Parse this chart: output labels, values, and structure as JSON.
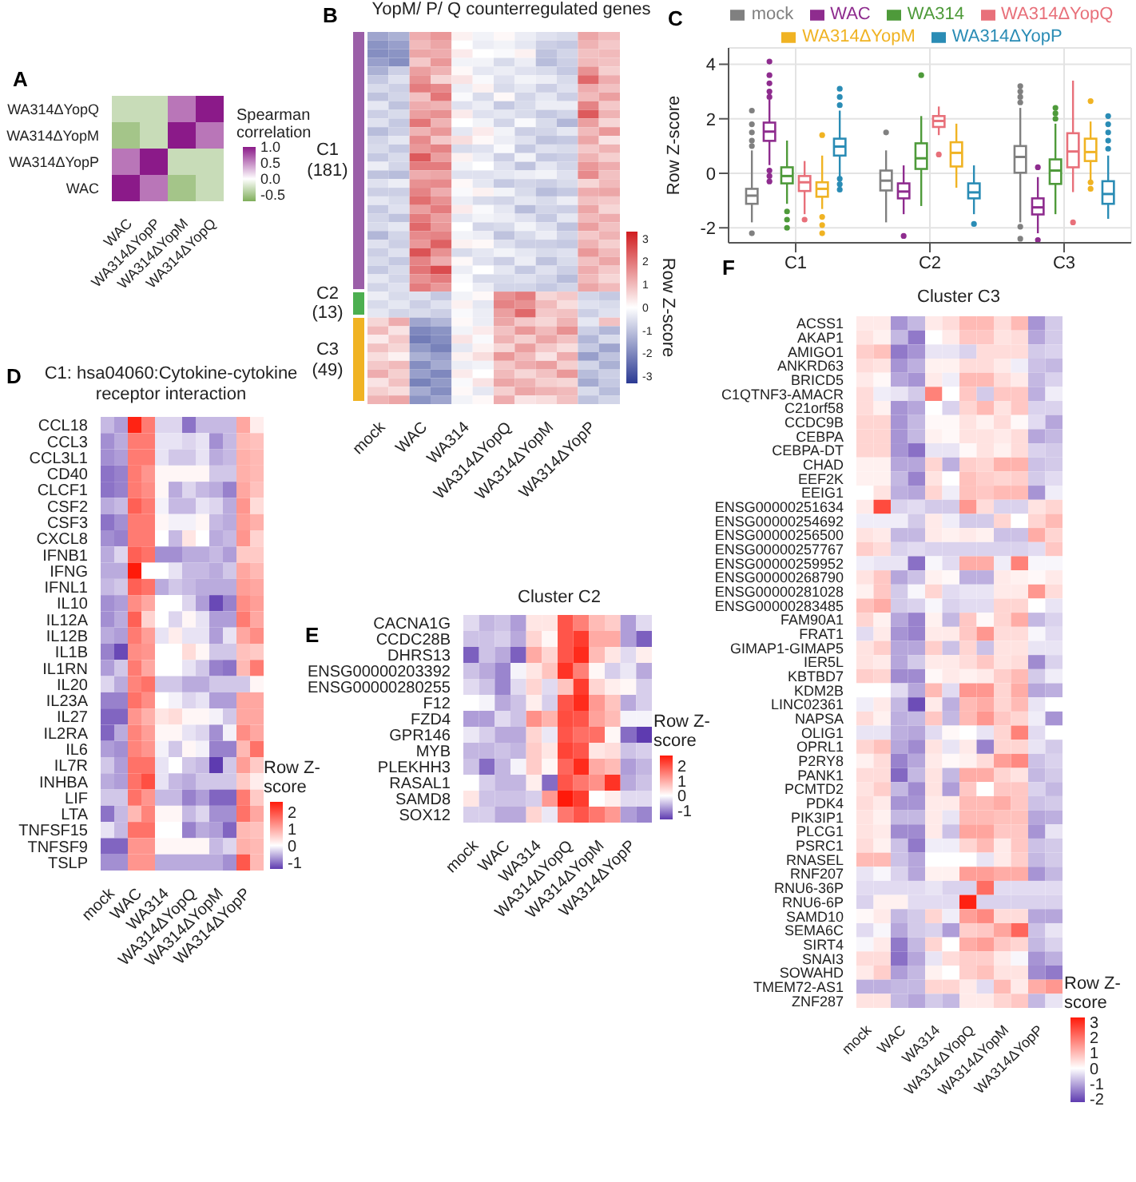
{
  "chart_data": [
    {
      "type": "heatmap",
      "annotations": [
        "A"
      ],
      "categories": [
        "WAC",
        "WA314ΔYopP",
        "WA314ΔYopM",
        "WA314ΔYopQ"
      ],
      "y_categories": [
        "WA314ΔYopQ",
        "WA314ΔYopM",
        "WA314ΔYopP",
        "WAC"
      ],
      "cells": [
        [
          -0.3,
          -0.3,
          0.6,
          1
        ],
        [
          -0.5,
          -0.3,
          1,
          0.6
        ],
        [
          0.6,
          1,
          -0.3,
          -0.3
        ],
        [
          1,
          0.6,
          -0.5,
          -0.3
        ]
      ],
      "clabel": "Spearman correlation",
      "clim": [
        -0.7,
        1
      ],
      "cticks": [
        {
          "value": 1,
          "label": "1.0"
        },
        0.5,
        {
          "value": 0,
          "label": "0.0"
        },
        -0.5
      ]
    },
    {
      "type": "heatmap",
      "title": "YopM/ P/ Q counterregulated genes",
      "annotations": [
        "B",
        "C1 (181)",
        "C2 (13)",
        "C3 (49)"
      ],
      "tick_labels": "x",
      "categories": [
        "mock",
        null,
        "WAC",
        null,
        "WA314",
        null,
        "WA314ΔYopQ",
        null,
        "WA314ΔYopM",
        null,
        "WA314ΔYopP",
        null
      ],
      "cells": [
        [
          -1.5,
          -1.3,
          1.2,
          1.5,
          0.2,
          -0.2,
          0.1,
          -0.3,
          -0.5,
          -0.6,
          1.3,
          1
        ],
        [
          -1.8,
          -1.6,
          1,
          1.3,
          0,
          -0.3,
          -0.2,
          -0.4,
          -0.8,
          -0.9,
          1.1,
          0.8
        ],
        [
          -1.9,
          -1.8,
          1.3,
          1.2,
          0.3,
          0,
          -0.1,
          0.2,
          -1,
          -0.7,
          0.9,
          1
        ],
        [
          -1.6,
          -1.9,
          0.8,
          1.5,
          -0.2,
          -0.2,
          -0.6,
          -0.3,
          -1.1,
          -0.8,
          1,
          0.9
        ],
        [
          -1.3,
          -0.8,
          1.4,
          1.1,
          0.1,
          -0.4,
          -0.3,
          -0.5,
          -0.6,
          -0.9,
          1.6,
          0.7
        ],
        [
          -0.9,
          -0.5,
          1.6,
          0.6,
          0.4,
          -0.1,
          -0.5,
          -0.2,
          -0.3,
          -0.6,
          2.2,
          1.2
        ],
        [
          -0.6,
          -0.8,
          1.9,
          1.7,
          -0.3,
          0.2,
          -0.6,
          -0.4,
          -0.8,
          -0.5,
          1.2,
          0.9
        ],
        [
          -1,
          -0.7,
          0.9,
          2,
          -0.1,
          -0.6,
          0.1,
          -0.7,
          -0.4,
          -0.8,
          1,
          1.4
        ],
        [
          -0.4,
          -1,
          1.2,
          1.1,
          -0.5,
          -0.3,
          -0.9,
          -0.6,
          -0.3,
          -0.3,
          1.8,
          0.8
        ],
        [
          -0.8,
          -0.6,
          1.4,
          1.6,
          0.3,
          -0.5,
          -0.4,
          -0.6,
          -0.9,
          -0.7,
          2.4,
          1.1
        ],
        [
          -0.5,
          -0.9,
          2,
          1.1,
          0,
          -0.2,
          -0.7,
          -0.1,
          -0.6,
          -1.2,
          1.4,
          0.6
        ],
        [
          -1.1,
          -0.8,
          1.1,
          1.5,
          -0.4,
          0.3,
          -0.2,
          -0.8,
          -0.7,
          -0.4,
          1,
          1.5
        ],
        [
          -0.7,
          -0.4,
          1.7,
          0.8,
          0.5,
          0.1,
          -0.3,
          -0.5,
          -1,
          -0.9,
          1.3,
          0.4
        ],
        [
          -0.6,
          -0.9,
          1.5,
          1.8,
          -0.6,
          -0.5,
          -0.1,
          -0.9,
          -0.5,
          -0.6,
          0.8,
          1.1
        ],
        [
          -0.9,
          -0.6,
          2.4,
          1.4,
          0.2,
          -0.3,
          -0.8,
          -0.2,
          -0.9,
          -0.8,
          1.1,
          0.7
        ],
        [
          -0.3,
          -0.7,
          1.9,
          1.9,
          -0.2,
          0,
          -0.5,
          -1,
          -0.4,
          -0.7,
          1.5,
          1.2
        ],
        [
          -1,
          -1.1,
          1.2,
          1.3,
          -0.5,
          -0.5,
          -0.4,
          -0.3,
          -0.2,
          -0.5,
          1.7,
          0.9
        ],
        [
          -0.5,
          -0.3,
          1.6,
          1.7,
          0.1,
          -0.4,
          -0.9,
          -0.7,
          -0.8,
          -0.6,
          0.6,
          1
        ],
        [
          -0.8,
          -0.8,
          1.8,
          1.2,
          -0.1,
          0.2,
          -0.2,
          -0.6,
          -1.1,
          -0.9,
          1.2,
          1.3
        ],
        [
          -0.4,
          -0.6,
          2.1,
          1.6,
          -0.3,
          -0.6,
          -0.7,
          -0.4,
          -0.6,
          -0.3,
          0.9,
          0.8
        ],
        [
          -0.9,
          -0.5,
          1.4,
          1.9,
          0.3,
          -0.1,
          -0.4,
          -1.1,
          -0.7,
          -0.8,
          1.3,
          0.6
        ],
        [
          -0.7,
          -1,
          1.9,
          1.4,
          -0.4,
          -0.2,
          -0.3,
          -0.5,
          -0.9,
          -0.4,
          1,
          1.2
        ],
        [
          -0.6,
          -0.4,
          2.2,
          1.5,
          0,
          -0.7,
          -0.6,
          -0.2,
          -0.5,
          -1,
          1.4,
          0.9
        ],
        [
          -1.2,
          -0.7,
          1.7,
          1.8,
          -0.2,
          -0.3,
          -1,
          -0.6,
          -0.3,
          -0.7,
          0.8,
          1.1
        ],
        [
          -0.5,
          -0.8,
          1.5,
          2.3,
          0.2,
          0.1,
          -0.5,
          -0.8,
          -0.8,
          -0.9,
          1.1,
          0.7
        ],
        [
          -0.8,
          -0.5,
          2.5,
          1.6,
          -0.6,
          -0.4,
          -0.2,
          -0.4,
          -0.6,
          -0.5,
          1.5,
          1
        ],
        [
          -0.6,
          -0.9,
          1.8,
          1.2,
          0.1,
          -0.5,
          -0.8,
          -0.3,
          -1,
          -0.6,
          0.9,
          1.3
        ],
        [
          -0.9,
          -0.6,
          2,
          2.6,
          -0.3,
          0,
          -0.4,
          -0.9,
          -0.5,
          -0.8,
          1.2,
          0.8
        ],
        [
          -0.4,
          -0.7,
          1.6,
          1.9,
          -0.1,
          -0.6,
          -0.6,
          -0.5,
          -0.7,
          -1.1,
          1,
          0.6
        ],
        [
          -0.7,
          -0.5,
          1.9,
          1.5,
          0,
          -0.3,
          -0.7,
          -0.7,
          -0.9,
          -0.7,
          1.3,
          1
        ],
        [
          -0.3,
          -0.6,
          -0.5,
          -0.9,
          -0.2,
          0.1,
          1.6,
          1.9,
          0.6,
          0.8,
          -0.7,
          -0.9
        ],
        [
          -0.6,
          -0.4,
          -0.8,
          -0.5,
          0.2,
          -0.4,
          1.8,
          1.6,
          1,
          0.5,
          -0.5,
          -0.6
        ],
        [
          -0.4,
          -0.7,
          -0.6,
          -0.8,
          -0.1,
          -0.3,
          1.4,
          2.2,
          0.8,
          0.9,
          -0.8,
          -0.5
        ],
        [
          0.6,
          1.2,
          -1.5,
          -1.2,
          0.1,
          -0.3,
          1.3,
          0.8,
          0.6,
          1.1,
          -0.4,
          0.9
        ],
        [
          1,
          0.4,
          -2,
          -1.8,
          -0.2,
          0.3,
          0.9,
          1.5,
          1,
          1.6,
          -0.8,
          -1.2
        ],
        [
          0.3,
          0.8,
          -2.2,
          -1.9,
          0.4,
          -0.1,
          1.1,
          0.7,
          1.3,
          0.9,
          -1.2,
          -0.6
        ],
        [
          0.9,
          0.6,
          -1.7,
          -2.1,
          -0.4,
          0.2,
          0.6,
          1.4,
          0.8,
          0.5,
          -0.9,
          -1.5
        ],
        [
          0.5,
          0.2,
          -1.3,
          -1.6,
          0.2,
          0.5,
          1.5,
          1,
          0.4,
          1.2,
          -1.6,
          -1
        ],
        [
          0.8,
          1,
          -1.9,
          -1.4,
          -0.3,
          -0.2,
          0.8,
          1.2,
          1.4,
          0.7,
          -0.7,
          -1.3
        ],
        [
          1.2,
          0.7,
          -1.6,
          -2,
          0.3,
          0,
          1,
          0.6,
          0.9,
          1.5,
          -1.1,
          -0.8
        ],
        [
          0.4,
          0.9,
          -2.1,
          -1.7,
          -0.1,
          0.4,
          1.3,
          1.1,
          0.7,
          0.6,
          -1.4,
          -0.9
        ],
        [
          0.7,
          0.5,
          -1.4,
          -1.9,
          0.1,
          -0.4,
          0.7,
          1.3,
          1.1,
          1,
          -0.6,
          -1.1
        ],
        [
          1.1,
          1.3,
          -1.8,
          -1.5,
          -0.2,
          0.1,
          1.2,
          0.4,
          0.5,
          0.9,
          -1,
          -0.7
        ]
      ],
      "y_categories": [
        null,
        null,
        null,
        null,
        null,
        null,
        null,
        null,
        null,
        null,
        null,
        null,
        null,
        null,
        null,
        null,
        null,
        null,
        null,
        null,
        null,
        null,
        null,
        null,
        null,
        null,
        null,
        null,
        null,
        null,
        null,
        null,
        null,
        null,
        null,
        null,
        null,
        null,
        null,
        null,
        null,
        null,
        null
      ],
      "clabel": "Row Z-score",
      "clim": [
        -3.3,
        3.3
      ],
      "cticks": [
        -3,
        -2,
        -1,
        0,
        1,
        2,
        3
      ]
    },
    {
      "type": "box",
      "annotations": [
        "C"
      ],
      "categories": [
        "C1",
        "C2",
        "C3"
      ],
      "ylabel": "Row Z-score",
      "ylim": [
        -2.55,
        4.6
      ],
      "yticks": [
        -2,
        0,
        2,
        4
      ],
      "grid": true,
      "legend": "top",
      "series": [
        {
          "name": "mock",
          "color": "#808080",
          "boxes": [
            {
              "low": -1.8,
              "q1": -1.12,
              "median": -0.82,
              "q3": -0.57,
              "high": 0.84,
              "outliers": [
                1.0,
                1.2,
                1.5,
                1.8,
                2.3,
                -2.2
              ]
            },
            {
              "low": -1.8,
              "q1": -0.63,
              "median": -0.27,
              "q3": 0.1,
              "high": 0.84,
              "outliers": [
                1.5
              ]
            },
            {
              "low": -1.8,
              "q1": 0.02,
              "median": 0.6,
              "q3": 1.0,
              "high": 2.4,
              "outliers": [
                2.6,
                2.8,
                3.0,
                3.2,
                -1.96,
                -2.4
              ]
            }
          ]
        },
        {
          "name": "WAC",
          "color": "#8e2c8e",
          "boxes": [
            {
              "low": 0.3,
              "q1": 1.19,
              "median": 1.53,
              "q3": 1.86,
              "high": 2.7,
              "outliers": [
                2.8,
                3.0,
                3.3,
                3.6,
                4.1,
                0.1,
                -0.1,
                -0.3
              ]
            },
            {
              "low": -1.5,
              "q1": -0.92,
              "median": -0.67,
              "q3": -0.37,
              "high": 0.29,
              "outliers": [
                -2.3
              ]
            },
            {
              "low": -2.2,
              "q1": -1.51,
              "median": -1.25,
              "q3": -0.92,
              "high": -0.14,
              "outliers": [
                0.22,
                -2.45
              ]
            }
          ]
        },
        {
          "name": "WA314",
          "color": "#4e9a3a",
          "boxes": [
            {
              "low": -1.12,
              "q1": -0.37,
              "median": -0.1,
              "q3": 0.22,
              "high": 1.2,
              "outliers": [
                -1.4,
                -1.7,
                -2.0
              ]
            },
            {
              "low": -1.2,
              "q1": 0.16,
              "median": 0.55,
              "q3": 1.1,
              "high": 2.1,
              "outliers": [
                3.6
              ]
            },
            {
              "low": -1.5,
              "q1": -0.39,
              "median": 0.1,
              "q3": 0.51,
              "high": 1.82,
              "outliers": [
                2.0,
                2.2,
                2.4
              ]
            }
          ]
        },
        {
          "name": "WA314ΔYopQ",
          "color": "#e8707a",
          "boxes": [
            {
              "low": -1.5,
              "q1": -0.65,
              "median": -0.33,
              "q3": -0.1,
              "high": 0.45,
              "outliers": [
                -1.7
              ]
            },
            {
              "low": 1.4,
              "q1": 1.7,
              "median": 1.92,
              "q3": 2.1,
              "high": 2.45,
              "outliers": [
                0.69
              ]
            },
            {
              "low": -0.69,
              "q1": 0.22,
              "median": 0.8,
              "q3": 1.47,
              "high": 3.4,
              "outliers": [
                -1.8
              ]
            }
          ]
        },
        {
          "name": "WA314ΔYopM",
          "color": "#f0b323",
          "boxes": [
            {
              "low": -1.31,
              "q1": -0.86,
              "median": -0.57,
              "q3": -0.33,
              "high": 0.65,
              "outliers": [
                1.4,
                -1.6,
                -1.9,
                -2.2
              ]
            },
            {
              "low": -0.53,
              "q1": 0.25,
              "median": 0.75,
              "q3": 1.14,
              "high": 1.82
            },
            {
              "low": -0.24,
              "q1": 0.45,
              "median": 0.78,
              "q3": 1.27,
              "high": 1.9,
              "outliers": [
                2.65,
                -0.33,
                -0.57
              ]
            }
          ]
        },
        {
          "name": "WA314ΔYopP",
          "color": "#2a8cb5",
          "boxes": [
            {
              "low": -0.14,
              "q1": 0.65,
              "median": 0.98,
              "q3": 1.27,
              "high": 2.3,
              "outliers": [
                2.5,
                2.8,
                3.1,
                -0.2,
                -0.4,
                -0.6
              ]
            },
            {
              "low": -1.5,
              "q1": -0.92,
              "median": -0.7,
              "q3": -0.37,
              "high": 0.29,
              "outliers": [
                -1.86
              ]
            },
            {
              "low": -1.67,
              "q1": -1.12,
              "median": -0.76,
              "q3": -0.29,
              "high": 0.65,
              "outliers": [
                0.9,
                1.2,
                1.5,
                1.8,
                2.1
              ]
            }
          ]
        }
      ]
    },
    {
      "type": "heatmap",
      "title": "C1: hsa04060:Cytokine-cytokine receptor interaction",
      "annotations": [
        "D"
      ],
      "categories": [
        "mock",
        null,
        "WAC",
        null,
        "WA314",
        null,
        "WA314ΔYopQ",
        null,
        "WA314ΔYopM",
        null,
        "WA314ΔYopP",
        null
      ],
      "y_categories": [
        "CCL18",
        "CCL3",
        "CCL3L1",
        "CD40",
        "CLCF1",
        "CSF2",
        "CSF3",
        "CXCL8",
        "IFNB1",
        "IFNG",
        "IFNL1",
        "IL10",
        "IL12A",
        "IL12B",
        "IL1B",
        "IL1RN",
        "IL20",
        "IL23A",
        "IL27",
        "IL2RA",
        "IL6",
        "IL7R",
        "INHBA",
        "LIF",
        "LTA",
        "TNFSF15",
        "TNFSF9",
        "TSLP"
      ],
      "cells": [
        [
          -0.5,
          -0.7,
          2.5,
          1.5,
          -0.3,
          -0.3,
          -1,
          -0.5,
          -0.5,
          -0.5,
          1,
          0.2
        ],
        [
          -0.8,
          -0.6,
          1.5,
          1.5,
          -0.2,
          -0.2,
          -0.3,
          -0.2,
          -0.8,
          -0.5,
          0.8,
          0.7
        ],
        [
          -0.8,
          -0.7,
          1.5,
          1.5,
          -0.2,
          -0.4,
          -0.4,
          -0.2,
          -0.6,
          -0.5,
          0.9,
          0.8
        ],
        [
          -1,
          -0.9,
          1.5,
          1.2,
          0.1,
          0.1,
          0.1,
          0.1,
          -0.4,
          -0.4,
          0.9,
          0.8
        ],
        [
          -1,
          -0.9,
          1.5,
          1.3,
          0.1,
          -0.6,
          -0.3,
          -0.5,
          -0.6,
          -0.9,
          1,
          0.7
        ],
        [
          -0.6,
          -0.5,
          1.8,
          1.5,
          -0.1,
          -0.5,
          -0.5,
          -0.2,
          -0.3,
          -0.6,
          1.2,
          0.4
        ],
        [
          -1,
          -0.8,
          1.5,
          1.5,
          0.1,
          -0.1,
          -0.1,
          0.1,
          -0.5,
          -0.6,
          1.1,
          0.9
        ],
        [
          -0.8,
          -0.9,
          1.5,
          1.5,
          0,
          -0.5,
          0.3,
          0,
          -0.6,
          -0.5,
          1.2,
          0.5
        ],
        [
          -0.6,
          -0.3,
          1.8,
          1.6,
          -0.8,
          -0.8,
          -0.6,
          -0.6,
          -0.5,
          -0.7,
          0.6,
          0.6
        ],
        [
          -0.6,
          -0.6,
          2.6,
          0,
          0,
          -0.2,
          -0.5,
          -0.5,
          -0.6,
          -0.4,
          1,
          0.8
        ],
        [
          -0.5,
          -0.4,
          1.8,
          1.6,
          -0.6,
          -0.4,
          -0.5,
          -0.6,
          -0.6,
          -0.6,
          1.1,
          1
        ],
        [
          -0.8,
          -0.7,
          1.3,
          1,
          0,
          0,
          -0.3,
          -0.7,
          -1.3,
          -0.9,
          1.3,
          1.1
        ],
        [
          -0.8,
          -0.6,
          1.8,
          0.5,
          0,
          -0.3,
          0.1,
          -0.2,
          -0.7,
          -0.7,
          1.5,
          1
        ],
        [
          -0.6,
          -0.7,
          1.5,
          1.1,
          -0.2,
          0.2,
          -0.2,
          -0.2,
          -0.7,
          -0.2,
          1,
          1.3
        ],
        [
          -0.9,
          -1.3,
          1.3,
          1.2,
          0,
          0,
          0.4,
          0.1,
          -0.4,
          -0.4,
          0.7,
          0.6
        ],
        [
          -0.7,
          -0.4,
          1.5,
          1,
          0,
          0,
          -0.2,
          -0.4,
          -0.9,
          -1,
          0.8,
          1.5
        ],
        [
          -0.3,
          -0.6,
          1.4,
          1.6,
          -0.4,
          -0.4,
          -0.6,
          -0.6,
          -0.4,
          -0.4,
          -0.4,
          0.1
        ],
        [
          -0.9,
          -0.9,
          1.6,
          1.3,
          0,
          -0.1,
          -0.3,
          -0.2,
          -0.7,
          -0.7,
          1,
          1
        ],
        [
          -1.1,
          -1.1,
          1.2,
          0.9,
          0.3,
          0.4,
          0.1,
          0.1,
          -0.1,
          -0.4,
          1,
          1
        ],
        [
          -1.1,
          -0.6,
          1.4,
          1.1,
          0.1,
          0.1,
          -0.2,
          -0.3,
          -0.8,
          -0.1,
          1.3,
          1
        ],
        [
          -0.7,
          -0.8,
          1.4,
          1.2,
          -0.1,
          -0.4,
          0.1,
          -0.1,
          -0.9,
          -0.9,
          0.8,
          1.6
        ],
        [
          -0.4,
          -0.7,
          1.6,
          1.6,
          -0.2,
          0,
          -0.4,
          -0.5,
          -1.5,
          -0.4,
          1.1,
          0.6
        ],
        [
          -0.6,
          -0.7,
          1.6,
          2,
          -0.2,
          -0.5,
          -0.6,
          -0.4,
          -0.4,
          -0.4,
          0.6,
          0.2
        ],
        [
          -0.4,
          -0.4,
          1.6,
          1.2,
          -0.5,
          -0.5,
          -0.9,
          -0.7,
          -1.1,
          -1.1,
          1.5,
          0.6
        ],
        [
          -1,
          -0.5,
          0.8,
          1.4,
          0.1,
          0.1,
          -0.5,
          -0.3,
          -0.8,
          -0.8,
          1.6,
          1
        ],
        [
          -0.2,
          -0.5,
          1.6,
          1.6,
          0,
          0,
          -0.9,
          -0.6,
          -0.7,
          -1.1,
          0.8,
          0.7
        ],
        [
          -1.1,
          -1.1,
          1.2,
          1.2,
          0.1,
          0.1,
          0.1,
          0.1,
          -0.5,
          -0.3,
          0.9,
          0.8
        ],
        [
          -0.8,
          -0.8,
          1.2,
          1.2,
          -0.6,
          -0.6,
          -0.6,
          -0.6,
          -0.6,
          -0.8,
          1.9,
          0.8
        ]
      ],
      "clabel": "Row Z-score",
      "clim": [
        -1.4,
        2.6
      ],
      "cticks": [
        -1,
        0,
        1,
        2
      ]
    },
    {
      "type": "heatmap",
      "title": "Cluster C2",
      "annotations": [
        "E"
      ],
      "categories": [
        "mock",
        null,
        "WAC",
        null,
        "WA314",
        null,
        "WA314ΔYopQ",
        null,
        "WA314ΔYopM",
        null,
        "WA314ΔYopP",
        null
      ],
      "y_categories": [
        "CACNA1G",
        "CCDC28B",
        "DHRS13",
        "ENSG00000203392",
        "ENSG00000280255",
        "F12",
        "FZD4",
        "GPR146",
        "MYB",
        "PLEKHH3",
        "RASAL1",
        "SAMD8",
        "SOX12"
      ],
      "cells": [
        [
          -0.3,
          -0.6,
          -0.5,
          -0.8,
          0.3,
          0.3,
          2,
          1.5,
          0.8,
          0.6,
          -0.8,
          -0.3
        ],
        [
          -0.5,
          -0.5,
          -0.4,
          -0.7,
          0.5,
          0.1,
          2,
          2.3,
          1,
          1,
          -0.8,
          -1.3
        ],
        [
          -1.3,
          -0.5,
          -0.7,
          -1.3,
          1,
          0.5,
          2,
          2.5,
          0.8,
          0.3,
          -0.3,
          0.2
        ],
        [
          -0.5,
          -0.7,
          -1,
          -0.1,
          0.3,
          0.7,
          2.4,
          1.5,
          0.1,
          -0.4,
          -0.2,
          -0.7
        ],
        [
          -0.3,
          -0.5,
          -1,
          -0.3,
          0.5,
          -0.3,
          0.7,
          2.3,
          0.5,
          0.2,
          0.1,
          -0.4
        ],
        [
          0,
          -0.1,
          -0.7,
          -0.5,
          0.2,
          -0.4,
          2,
          2.5,
          1.2,
          0.7,
          -0.7,
          -0.4
        ],
        [
          -0.8,
          -0.8,
          -0.3,
          -0.5,
          1.3,
          0.9,
          2.1,
          2,
          1.1,
          0.8,
          -0.1,
          -0.1
        ],
        [
          -0.2,
          -0.4,
          -0.7,
          -0.7,
          0.5,
          -0.2,
          2,
          1.7,
          1.7,
          0.1,
          -1.2,
          -1.6
        ],
        [
          -0.6,
          -0.6,
          -0.5,
          -0.6,
          0.6,
          0.3,
          2.2,
          2,
          0.3,
          0.4,
          -0.5,
          -0.4
        ],
        [
          -0.5,
          -1.2,
          -0.6,
          -0.1,
          0.6,
          0.1,
          1.8,
          2.5,
          1,
          0.8,
          -0.8,
          -0.6
        ],
        [
          0,
          -0.4,
          -0.6,
          -0.6,
          0.2,
          -1.2,
          2,
          1.6,
          1.3,
          2.4,
          -0.7,
          -0.5
        ],
        [
          0.3,
          -0.5,
          -0.5,
          -0.5,
          -0.4,
          1.2,
          2.7,
          2.3,
          0,
          0.2,
          -0.3,
          -0.3
        ],
        [
          -0.4,
          -0.4,
          -0.7,
          -0.7,
          0.5,
          -0.2,
          1.6,
          2,
          1.6,
          1.2,
          -0.8,
          -1
        ]
      ],
      "clabel": "Row Z-score",
      "clim": [
        -1.6,
        2.7
      ],
      "cticks": [
        -1,
        0,
        1,
        2
      ]
    },
    {
      "type": "heatmap",
      "title": "Cluster C3",
      "annotations": [
        "F"
      ],
      "categories": [
        "mock",
        null,
        "WAC",
        null,
        "WA314",
        null,
        "WA314ΔYopQ",
        null,
        "WA314ΔYopM",
        null,
        "WA314ΔYopP",
        null
      ],
      "y_categories": [
        "ACSS1",
        "AKAP1",
        "AMIGO1",
        "ANKRD63",
        "BRICD5",
        "C1QTNF3-AMACR",
        "C21orf58",
        "CCDC9B",
        "CEBPA",
        "CEBPA-DT",
        "CHAD",
        "EEF2K",
        "EEIG1",
        "ENSG00000251634",
        "ENSG00000254692",
        "ENSG00000256500",
        "ENSG00000257767",
        "ENSG00000259952",
        "ENSG00000268790",
        "ENSG00000281028",
        "ENSG00000283485",
        "FAM90A1",
        "FRAT1",
        "GIMAP1-GIMAP5",
        "IER5L",
        "KBTBD7",
        "KDM2B",
        "LINC02361",
        "NAPSA",
        "OLIG1",
        "OPRL1",
        "P2RY8",
        "PANK1",
        "PCMTD2",
        "PDK4",
        "PIK3IP1",
        "PLCG1",
        "PSRC1",
        "RNASEL",
        "RNF207",
        "RNU6-36P",
        "RNU6-6P",
        "SAMD10",
        "SEMA6C",
        "SIRT4",
        "SNAI3",
        "SOWAHD",
        "TMEM72-AS1",
        "ZNF287"
      ],
      "cells": [
        [
          0.3,
          0.3,
          -1.2,
          -0.8,
          0.3,
          0.5,
          1,
          1,
          0.5,
          1,
          -1.2,
          -0.6
        ],
        [
          0.4,
          0.2,
          -0.8,
          -1.5,
          0,
          0.3,
          0.8,
          0.8,
          0.4,
          0.5,
          -1,
          -0.6
        ],
        [
          0.7,
          0.9,
          -1.5,
          -1.2,
          -0.3,
          -0.3,
          -0.5,
          0.5,
          0.5,
          0.5,
          -0.6,
          -0.5
        ],
        [
          0.5,
          0.4,
          -1.2,
          -0.9,
          0.2,
          0.2,
          0.5,
          0.5,
          0.3,
          -0.2,
          -0.7,
          -0.8
        ],
        [
          0.3,
          0.1,
          -1,
          -1.2,
          0.3,
          -0.2,
          1,
          1,
          0.5,
          0.3,
          -0.8,
          -0.5
        ],
        [
          0.5,
          -0.2,
          -0.3,
          -0.6,
          1.8,
          0,
          0.8,
          -0.6,
          0.8,
          0.8,
          -0.9,
          -0.2
        ],
        [
          0.5,
          0.2,
          -1.2,
          -1,
          0,
          -0.5,
          0.6,
          1,
          0.4,
          0.8,
          -0.5,
          -0.5
        ],
        [
          0.6,
          0.6,
          -1.2,
          -0.8,
          0.1,
          0.1,
          0.4,
          0.2,
          0.5,
          0.1,
          -0.4,
          -1
        ],
        [
          0.6,
          0.6,
          -1.2,
          -0.8,
          0.2,
          0.1,
          0.4,
          0.4,
          0.3,
          0.5,
          -1,
          -0.8
        ],
        [
          0.6,
          0.6,
          -1.2,
          -1.6,
          -0.3,
          -0.3,
          0.1,
          0.4,
          0.2,
          0.5,
          -0.5,
          -0.6
        ],
        [
          0.2,
          0.2,
          -1,
          -1,
          0.6,
          -0.9,
          0.7,
          0.6,
          1.1,
          1.1,
          -0.7,
          -0.6
        ],
        [
          0.2,
          0.2,
          -0.8,
          -1.4,
          0.4,
          0,
          0.9,
          0.7,
          0.6,
          0.7,
          -0.6,
          -0.4
        ],
        [
          0,
          0.4,
          -0.9,
          -1,
          0.6,
          -0.2,
          0.9,
          0.8,
          1,
          1,
          -1.2,
          -0.2
        ],
        [
          0.3,
          2.6,
          -0.5,
          -0.4,
          -0.6,
          -0.6,
          1.5,
          0.5,
          -0.5,
          -0.5,
          0.4,
          0.6
        ],
        [
          -0.2,
          -0.2,
          -0.2,
          -0.6,
          0.3,
          -0.2,
          -0.6,
          -0.6,
          0.6,
          0,
          0.6,
          1
        ],
        [
          0.4,
          0.3,
          -0.8,
          -0.8,
          0.3,
          0.2,
          0.3,
          0.2,
          -0.7,
          -0.7,
          1.2,
          0.6
        ],
        [
          0.7,
          0.5,
          -0.5,
          -0.4,
          -0.5,
          -0.5,
          -0.5,
          -0.5,
          -0.5,
          -0.5,
          -0.4,
          0.8
        ],
        [
          -0.2,
          -0.3,
          -0.3,
          -1.6,
          -0.1,
          -0.4,
          1.2,
          1.2,
          -0.2,
          1.8,
          -0.1,
          -0.1
        ],
        [
          0.4,
          0.8,
          -1,
          -0.7,
          0.2,
          0.1,
          -0.9,
          -0.9,
          0.3,
          0.2,
          0.1,
          0.3
        ],
        [
          0.2,
          0.8,
          -0.6,
          -0.1,
          0.6,
          -0.4,
          -0.3,
          -0.3,
          0.3,
          0.3,
          1.5,
          0.5
        ],
        [
          0.9,
          1.2,
          -0.6,
          -0.5,
          -0.1,
          -0.5,
          -0.4,
          -0.4,
          0.6,
          0.6,
          0,
          -0.3
        ],
        [
          0.6,
          0.2,
          -1,
          -1.4,
          0.2,
          -0.8,
          0.8,
          0.1,
          0.6,
          1.2,
          -0.8,
          -0.5
        ],
        [
          -0.4,
          0.3,
          -1.2,
          -1.4,
          0.3,
          0.3,
          0.8,
          1.5,
          0.5,
          0.5,
          -0.1,
          -0.4
        ],
        [
          0.4,
          0.7,
          -1,
          -1,
          0.7,
          -0.7,
          0.6,
          -0.7,
          0.4,
          0.4,
          -0.3,
          -0.3
        ],
        [
          0.4,
          0.3,
          -1,
          -0.6,
          0.3,
          0.3,
          0.5,
          0.8,
          0.4,
          0.5,
          -1.3,
          -0.5
        ],
        [
          0.7,
          0.6,
          -1.3,
          -1.3,
          0.1,
          0.3,
          0.2,
          0.3,
          0.7,
          1,
          -0.6,
          -0.2
        ],
        [
          0,
          0,
          -0.4,
          -1,
          1,
          -0.4,
          1.5,
          1.5,
          0.6,
          1.2,
          -1,
          -0.9
        ],
        [
          -0.2,
          0.3,
          -0.8,
          -2,
          0.3,
          -0.9,
          1,
          1.2,
          0.6,
          1,
          -0.3,
          0
        ],
        [
          0.5,
          0.2,
          -0.9,
          -0.8,
          0.8,
          -0.8,
          1,
          1.5,
          0.8,
          0.6,
          -0.2,
          -1.2
        ],
        [
          -0.3,
          -0.3,
          -0.9,
          -1,
          -0.4,
          0.1,
          0,
          -0.3,
          0.6,
          1.8,
          -0.4,
          0
        ],
        [
          0.6,
          0.9,
          -1,
          -1.3,
          0.4,
          -0.3,
          0.3,
          -1.4,
          0.6,
          0.6,
          -0.3,
          -0.6
        ],
        [
          0.2,
          0.5,
          -1.4,
          -1,
          0.3,
          0.1,
          0.2,
          0.5,
          1.4,
          1.7,
          -0.7,
          -0.5
        ],
        [
          0.5,
          0.5,
          -1.7,
          -0.8,
          0.4,
          -0.8,
          1.2,
          1.2,
          0.6,
          0.4,
          -0.8,
          -0.6
        ],
        [
          0.4,
          0.7,
          -0.8,
          -1.3,
          0.4,
          -1.1,
          0.8,
          0,
          0.8,
          0.8,
          -0.5,
          -0.8
        ],
        [
          0.5,
          0.3,
          -1.2,
          -1.2,
          0.3,
          0.3,
          1,
          1,
          1.2,
          0.8,
          -0.7,
          -0.6
        ],
        [
          0.4,
          0.2,
          -0.8,
          -0.8,
          0.3,
          -0.3,
          1,
          1,
          0.9,
          0.9,
          -1,
          -0.9
        ],
        [
          0.4,
          0.3,
          -1.3,
          -1.3,
          0.3,
          -0.7,
          1.3,
          1.3,
          0.8,
          0.8,
          -1.2,
          -0.3
        ],
        [
          0.5,
          0.2,
          -0.7,
          -1.5,
          -0.2,
          -0.2,
          0.6,
          1,
          0.3,
          0.8,
          -0.7,
          -0.6
        ],
        [
          1,
          1,
          -0.7,
          -1,
          0,
          0,
          0,
          -0.3,
          0.3,
          0.7,
          -0.8,
          -0.6
        ],
        [
          -0.3,
          -0.1,
          -0.5,
          -1,
          0.2,
          0.2,
          1.4,
          1.4,
          1.2,
          1.2,
          -1.2,
          -0.8
        ],
        [
          -0.4,
          -0.4,
          -0.4,
          -0.4,
          -0.3,
          -0.5,
          -0.5,
          2.1,
          -0.4,
          -0.4,
          -0.4,
          -0.4
        ],
        [
          -0.5,
          0.2,
          0.2,
          -0.4,
          -0.4,
          -0.4,
          3.2,
          -0.5,
          -0.5,
          -0.5,
          -0.5,
          -0.5
        ],
        [
          0.1,
          0.3,
          -0.8,
          -0.6,
          0.6,
          -0.2,
          1.4,
          1.7,
          0.5,
          0.5,
          -1,
          -1
        ],
        [
          -0.4,
          -0.1,
          -1,
          -0.6,
          -0.5,
          -1.1,
          0.7,
          0.8,
          1.3,
          2.2,
          -0.7,
          -0.3
        ],
        [
          -0.1,
          0.3,
          -1.5,
          -0.8,
          0.6,
          0,
          1.2,
          1.4,
          0.8,
          0.6,
          -0.8,
          -0.5
        ],
        [
          0.5,
          0.5,
          -1.6,
          -1,
          -0.3,
          0.5,
          0.7,
          0.7,
          0.3,
          -0.1,
          -1.2,
          -0.9
        ],
        [
          0.3,
          0.7,
          -1.1,
          -0.8,
          0.2,
          0,
          0.7,
          0.9,
          0.4,
          0.4,
          -1.3,
          -1.5
        ],
        [
          -0.9,
          -0.9,
          -0.8,
          -0.8,
          0.6,
          0.6,
          0.3,
          -0.4,
          1,
          0.3,
          1.2,
          1.5
        ],
        [
          0.4,
          0.4,
          -0.8,
          -1,
          -0.6,
          -0.8,
          0.3,
          0.3,
          0.6,
          0.8,
          -0.8,
          -0.3
        ]
      ],
      "clabel": "Row Z-score",
      "clim": [
        -2.2,
        3.3
      ],
      "cticks": [
        -2,
        -1,
        0,
        1,
        2,
        3
      ]
    }
  ]
}
